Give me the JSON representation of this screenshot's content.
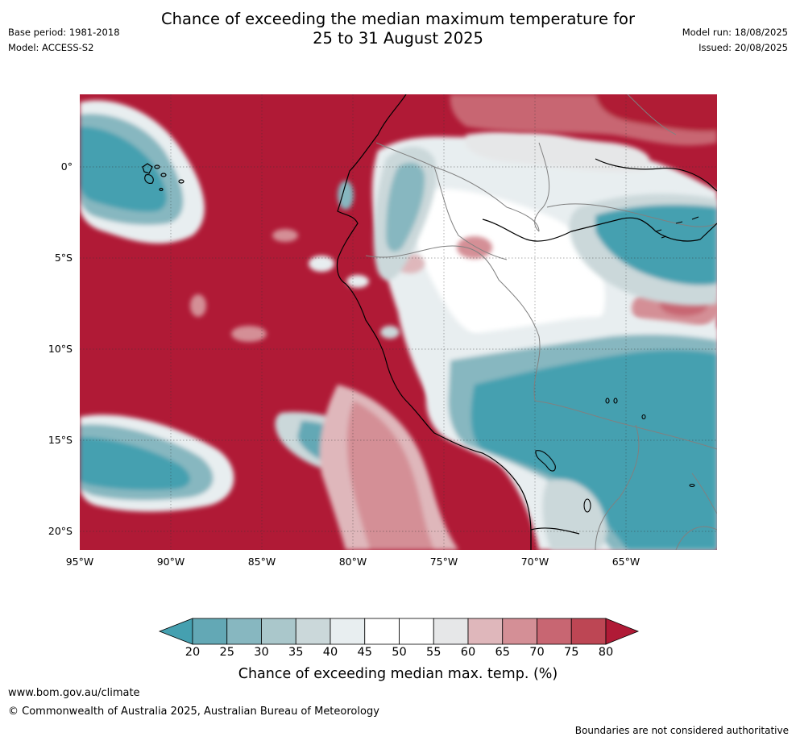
{
  "header": {
    "title_line1": "Chance of exceeding the median maximum temperature for",
    "title_line2": "25 to 31 August 2025",
    "base_period": "Base period: 1981-2018",
    "model": "Model: ACCESS-S2",
    "model_run": "Model run: 18/08/2025",
    "issued": "Issued: 20/08/2025"
  },
  "map": {
    "lat_labels": [
      "0°",
      "5°S",
      "10°S",
      "15°S",
      "20°S"
    ],
    "lon_labels": [
      "95°W",
      "90°W",
      "85°W",
      "80°W",
      "75°W",
      "70°W",
      "65°W"
    ],
    "colors": {
      "very_warm": "#b01a36",
      "warm_80": "#bd4654",
      "warm_75": "#c86672",
      "warm_70": "#d48f96",
      "warm_65": "#dfb7bb",
      "neutral_55": "#e6e7e8",
      "neutral_50": "#ffffff",
      "cool_40": "#e8eef0",
      "cool_35": "#cbd8da",
      "cool_30": "#aac7cb",
      "cool_25": "#87b7c0",
      "cool_20": "#63a8b5",
      "very_cool": "#45a0b0",
      "coast": "#000000",
      "border": "#808080"
    }
  },
  "colorbar": {
    "colors": [
      "#45a0b0",
      "#63a8b5",
      "#87b7c0",
      "#aac7cb",
      "#cbd8da",
      "#e8eef0",
      "#ffffff",
      "#ffffff",
      "#e6e7e8",
      "#dfb7bb",
      "#d48f96",
      "#c86672",
      "#bd4654",
      "#b01a36"
    ],
    "labels": [
      "20",
      "25",
      "30",
      "35",
      "40",
      "45",
      "50",
      "55",
      "60",
      "65",
      "70",
      "75",
      "80"
    ],
    "title": "Chance of exceeding median max. temp. (%)"
  },
  "footer": {
    "url": "www.bom.gov.au/climate",
    "copyright": "© Commonwealth of Australia 2025, Australian Bureau of Meteorology",
    "disclaimer": "Boundaries are not considered authoritative"
  }
}
